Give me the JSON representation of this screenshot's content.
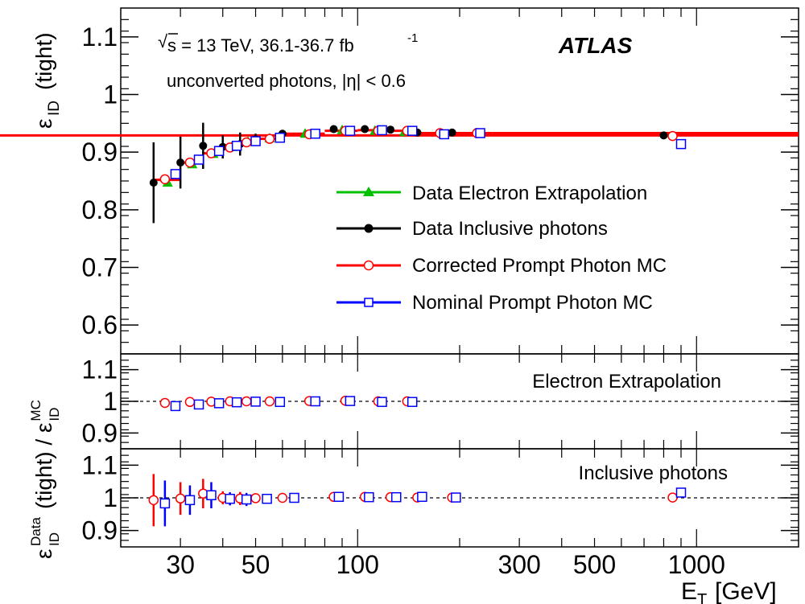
{
  "chart_data": [
    {
      "type": "scatter",
      "panel": "main",
      "ylabel_symbol": "ε",
      "ylabel_sub": "ID",
      "ylabel_suffix": "(tight)",
      "xaxis": {
        "scale": "log",
        "range": [
          20,
          2000
        ],
        "ticks": [
          30,
          50,
          100,
          300,
          500,
          1000
        ],
        "tick_labels": [
          "30",
          "50",
          "100",
          "300",
          "500",
          "1000"
        ],
        "label_main": "E",
        "label_sub": "T",
        "label_unit": "[GeV]"
      },
      "yaxis": {
        "range": [
          0.55,
          1.15
        ],
        "ticks": [
          0.6,
          0.7,
          0.8,
          0.9,
          1.0,
          1.1
        ],
        "tick_labels": [
          "0.6",
          "0.7",
          "0.8",
          "0.9",
          "1",
          "1.1"
        ]
      },
      "annotations": {
        "energy_pre": "s = 13 TeV, 36.1-36.7 fb",
        "energy_sup": "-1",
        "region": "unconverted photons, |η| < 0.6",
        "experiment": "ATLAS"
      },
      "legend_position": "center-right",
      "colors": {
        "electron": "#00c000",
        "inclusive": "#000000",
        "corrected": "#ff0000",
        "nominal": "#0000ff"
      },
      "series": [
        {
          "name": "Data Electron Extrapolation",
          "marker": "triangle",
          "x": [
            27.5,
            32.5,
            37.5,
            42.5,
            47.5,
            55,
            70,
            90,
            112.5,
            137.5
          ],
          "y": [
            0.847,
            0.879,
            0.897,
            0.909,
            0.918,
            0.924,
            0.932,
            0.938,
            0.937,
            0.935
          ],
          "yerr": [
            0.004,
            0.004,
            0.003,
            0.003,
            0.003,
            0.003,
            0.003,
            0.003,
            0.003,
            0.004
          ]
        },
        {
          "name": "Data Inclusive photons",
          "marker": "circle",
          "x": [
            25,
            30,
            35,
            40,
            45,
            50,
            60,
            85,
            105,
            125,
            150,
            190,
            800
          ],
          "y": [
            0.847,
            0.882,
            0.911,
            0.909,
            0.914,
            0.922,
            0.932,
            0.94,
            0.94,
            0.939,
            0.934,
            0.934,
            0.929
          ],
          "yerr": [
            0.07,
            0.045,
            0.04,
            0.02,
            0.02,
            0.01,
            0.006,
            0.005,
            0.005,
            0.004,
            0.004,
            0.004,
            0.004
          ]
        },
        {
          "name": "Corrected Prompt Photon MC",
          "marker": "open-circle",
          "x": [
            27,
            32,
            37,
            42,
            47,
            55,
            72,
            92,
            115,
            140,
            175,
            225,
            850
          ],
          "y": [
            0.853,
            0.882,
            0.898,
            0.908,
            0.917,
            0.923,
            0.931,
            0.937,
            0.937,
            0.937,
            0.933,
            0.933,
            0.928
          ]
        },
        {
          "name": "Nominal Prompt Photon MC",
          "marker": "open-square",
          "x": [
            29,
            34,
            39,
            44,
            50,
            59,
            75,
            95,
            118,
            145,
            180,
            230,
            900
          ],
          "y": [
            0.862,
            0.887,
            0.902,
            0.911,
            0.919,
            0.925,
            0.932,
            0.937,
            0.938,
            0.937,
            0.931,
            0.933,
            0.914
          ]
        }
      ],
      "step_line": {
        "edges": [
          25,
          30,
          35,
          40,
          45,
          50,
          60,
          80,
          100,
          125,
          150,
          250,
          2000
        ],
        "values": [
          0.852,
          0.882,
          0.898,
          0.908,
          0.916,
          0.923,
          0.932,
          0.937,
          0.938,
          0.937,
          0.933,
          0.933,
          0.929
        ],
        "color": "#ff0000"
      }
    },
    {
      "type": "scatter",
      "panel": "ratio-electron",
      "label": "Electron Extrapolation",
      "ylabel": "(tight) / ε",
      "ylabel_sup": "MC",
      "ylabel_sub": "ID",
      "yaxis": {
        "range": [
          0.85,
          1.15
        ],
        "ticks": [
          0.9,
          1.0,
          1.1
        ],
        "tick_labels": [
          "0.9",
          "1",
          "1.1"
        ]
      },
      "reference_line": 1,
      "series": [
        {
          "name": "Corrected Prompt Photon MC",
          "x": [
            27,
            32,
            37,
            42,
            47,
            55,
            72,
            92,
            115,
            140
          ],
          "y": [
            0.995,
            0.998,
            0.999,
            1.0,
            1.0,
            1.0,
            1.001,
            1.002,
            1.0,
            1.0
          ],
          "yerr": [
            0.005,
            0.004,
            0.004,
            0.004,
            0.003,
            0.003,
            0.003,
            0.003,
            0.003,
            0.003
          ]
        },
        {
          "name": "Nominal Prompt Photon MC",
          "x": [
            29,
            34,
            39,
            44,
            50,
            59,
            75,
            95,
            118,
            145
          ],
          "y": [
            0.985,
            0.99,
            0.994,
            0.997,
            0.999,
            0.998,
            1.0,
            1.001,
            0.998,
            0.998
          ],
          "yerr": [
            0.005,
            0.004,
            0.004,
            0.004,
            0.003,
            0.003,
            0.003,
            0.003,
            0.003,
            0.003
          ]
        }
      ]
    },
    {
      "type": "scatter",
      "panel": "ratio-inclusive",
      "label": "Inclusive photons",
      "ylabel_symbol": "ε",
      "ylabel_sup": "Data",
      "ylabel_sub": "ID",
      "yaxis": {
        "range": [
          0.85,
          1.15
        ],
        "ticks": [
          0.9,
          1.0,
          1.1
        ],
        "tick_labels": [
          "0.9",
          "1",
          "1.1"
        ]
      },
      "reference_line": 1,
      "series": [
        {
          "name": "Corrected Prompt Photon MC",
          "x": [
            25,
            30,
            35,
            40,
            45,
            50,
            60,
            85,
            105,
            125,
            150,
            190,
            850
          ],
          "y": [
            0.993,
            0.998,
            1.013,
            1.0,
            0.998,
            0.999,
            1.0,
            1.003,
            1.003,
            1.002,
            1.001,
            1.001,
            1.001
          ],
          "yerr": [
            0.08,
            0.05,
            0.045,
            0.02,
            0.02,
            0.01,
            0.006,
            0.005,
            0.005,
            0.004,
            0.004,
            0.004,
            0.004
          ]
        },
        {
          "name": "Nominal Prompt Photon MC",
          "x": [
            27,
            32,
            37,
            42,
            47,
            54,
            65,
            88,
            108,
            130,
            155,
            195,
            900
          ],
          "y": [
            0.983,
            0.993,
            1.008,
            0.997,
            0.995,
            0.997,
            1.0,
            1.003,
            1.002,
            1.002,
            1.003,
            1.001,
            1.016
          ],
          "yerr": [
            0.07,
            0.045,
            0.04,
            0.02,
            0.02,
            0.01,
            0.006,
            0.005,
            0.005,
            0.004,
            0.004,
            0.004,
            0.004
          ]
        }
      ]
    }
  ]
}
